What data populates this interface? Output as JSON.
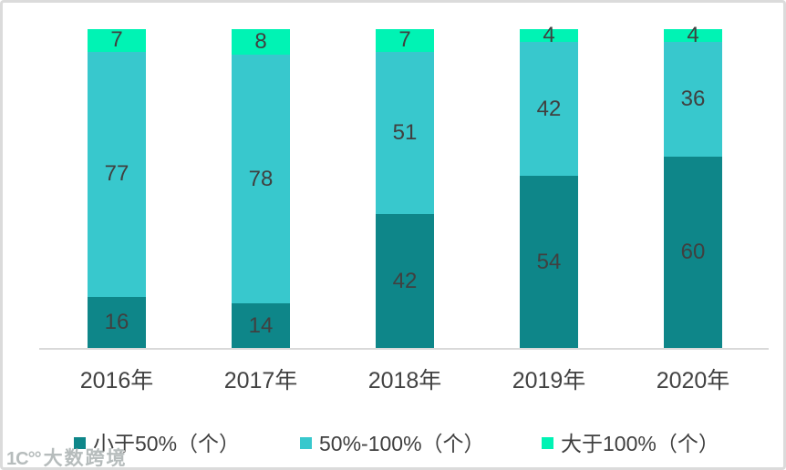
{
  "chart_data": {
    "type": "bar",
    "stacked": true,
    "title": "",
    "xlabel": "",
    "ylabel": "",
    "categories": [
      "2016年",
      "2017年",
      "2018年",
      "2019年",
      "2020年"
    ],
    "series": [
      {
        "name": "小于50%（个）",
        "color": "#0E8689",
        "values": [
          16,
          14,
          42,
          54,
          60
        ]
      },
      {
        "name": "50%-100%（个）",
        "color": "#38C8CD",
        "values": [
          77,
          78,
          51,
          42,
          36
        ]
      },
      {
        "name": "大于100%（个）",
        "color": "#00F3B4",
        "values": [
          7,
          8,
          7,
          4,
          4
        ]
      }
    ],
    "totals_per_bar": 100,
    "ylim": [
      0,
      100
    ],
    "grid": false,
    "value_labels": true,
    "value_label_color": "#404040",
    "axis_line_color": "#D9D9D9",
    "legend_position": "bottom"
  },
  "watermark": {
    "logo": "1C°°",
    "text": "大数跨境"
  }
}
